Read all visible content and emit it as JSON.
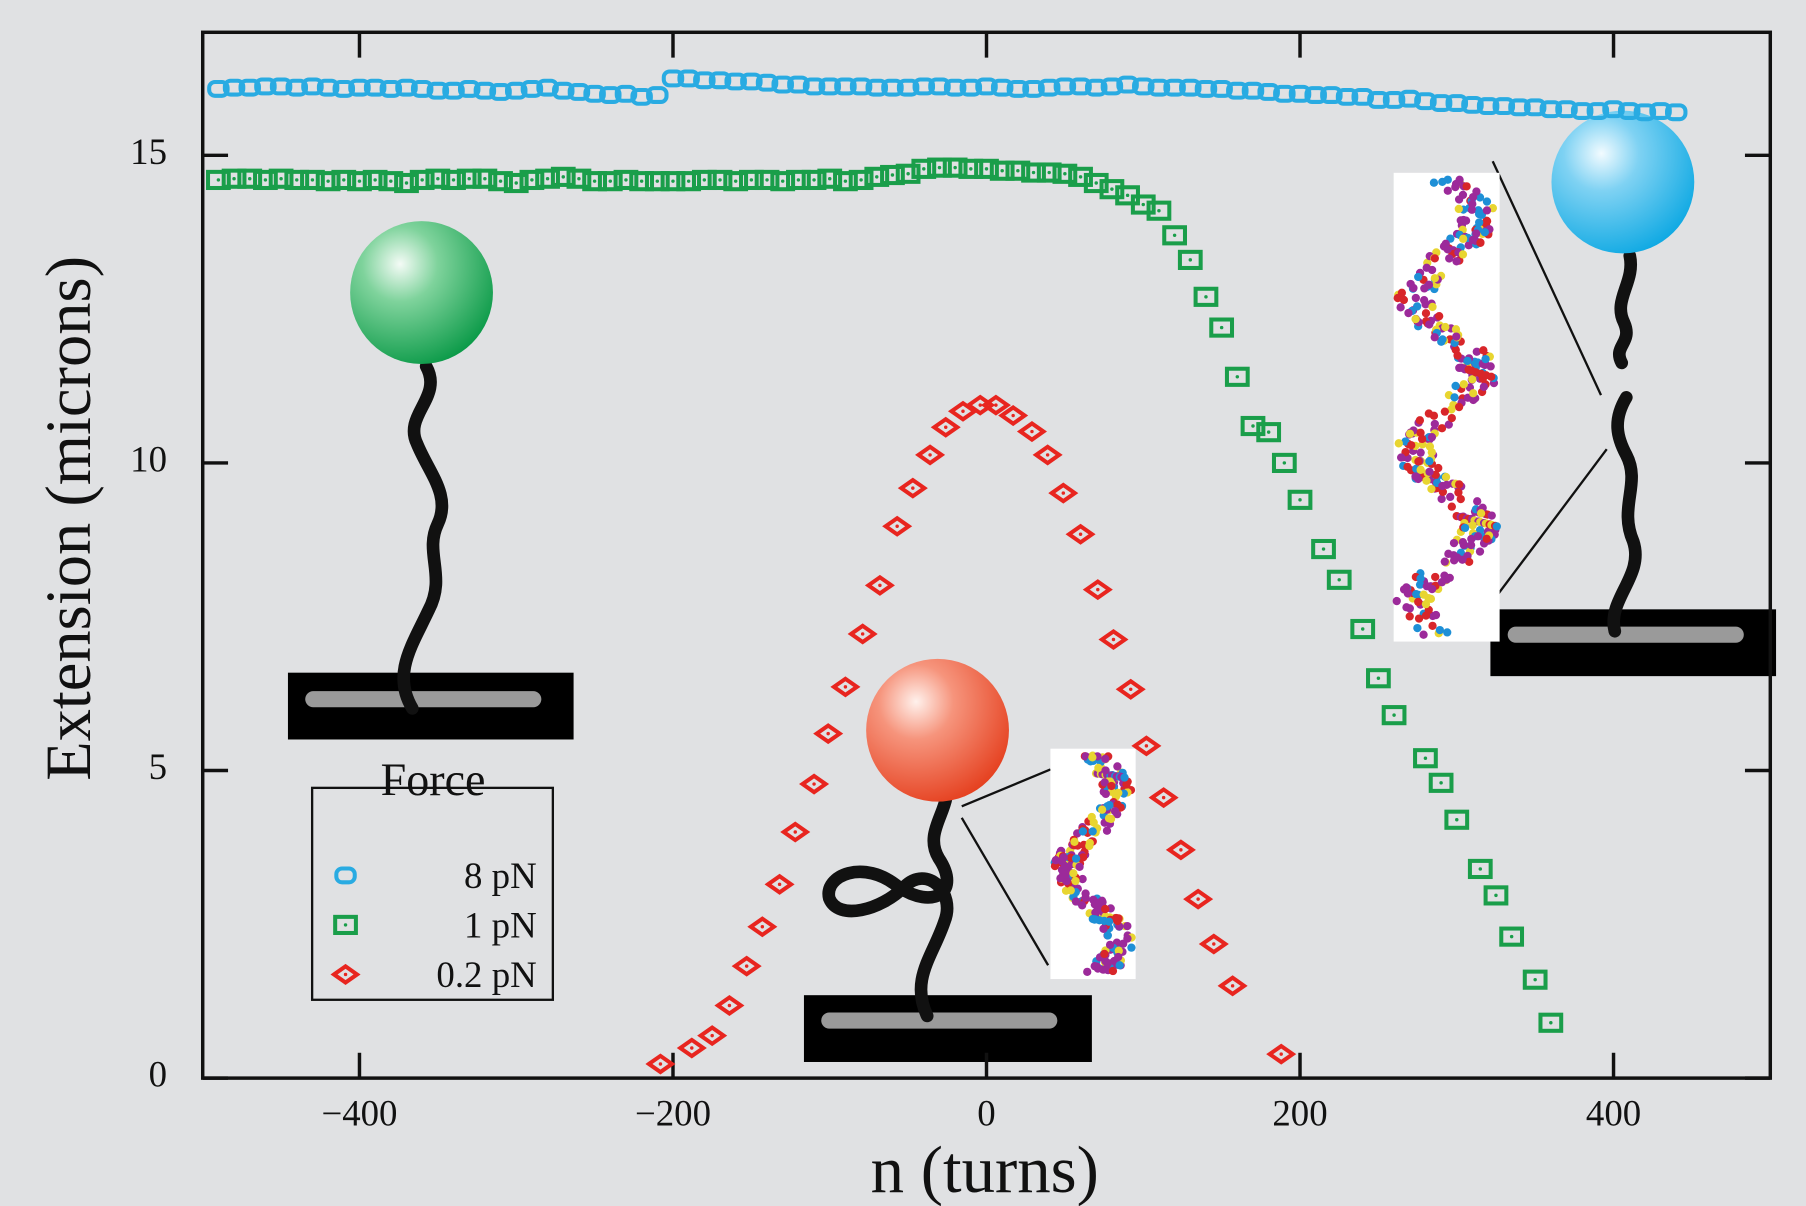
{
  "chart_data": {
    "type": "scatter",
    "x_label": "n (turns)",
    "y_label": "Extension (microns)",
    "xlim": [
      -500,
      500
    ],
    "ylim": [
      0,
      17
    ],
    "xticks": [
      {
        "value": -400,
        "label": "−400"
      },
      {
        "value": -200,
        "label": "−200"
      },
      0,
      200,
      400
    ],
    "yticks": [
      0,
      5,
      10,
      15
    ],
    "legend_title": "Force",
    "series": [
      {
        "name": "8 pN",
        "color": "#29abe2",
        "marker": "octagon",
        "x": [
          -490,
          -480,
          -470,
          -460,
          -450,
          -440,
          -430,
          -420,
          -410,
          -400,
          -390,
          -380,
          -370,
          -360,
          -350,
          -340,
          -330,
          -320,
          -310,
          -300,
          -290,
          -280,
          -270,
          -260,
          -250,
          -240,
          -230,
          -220,
          -210,
          -200,
          -190,
          -180,
          -170,
          -160,
          -150,
          -140,
          -130,
          -120,
          -110,
          -100,
          -90,
          -80,
          -70,
          -60,
          -50,
          -40,
          -30,
          -20,
          -10,
          0,
          10,
          20,
          30,
          40,
          50,
          60,
          70,
          80,
          90,
          100,
          110,
          120,
          130,
          140,
          150,
          160,
          170,
          180,
          190,
          200,
          210,
          220,
          230,
          240,
          250,
          260,
          270,
          280,
          290,
          300,
          310,
          320,
          330,
          340,
          350,
          360,
          370,
          380,
          390,
          400,
          410,
          420,
          430,
          440
        ],
        "values": [
          16.08,
          16.1,
          16.1,
          16.12,
          16.12,
          16.1,
          16.12,
          16.1,
          16.08,
          16.1,
          16.1,
          16.08,
          16.1,
          16.08,
          16.05,
          16.05,
          16.08,
          16.05,
          16.03,
          16.05,
          16.08,
          16.1,
          16.05,
          16.03,
          16.0,
          15.98,
          16.0,
          15.95,
          15.98,
          16.25,
          16.25,
          16.22,
          16.22,
          16.2,
          16.2,
          16.18,
          16.15,
          16.15,
          16.12,
          16.12,
          16.12,
          16.12,
          16.1,
          16.1,
          16.1,
          16.12,
          16.12,
          16.1,
          16.1,
          16.12,
          16.1,
          16.08,
          16.08,
          16.1,
          16.12,
          16.12,
          16.1,
          16.12,
          16.15,
          16.12,
          16.1,
          16.1,
          16.1,
          16.08,
          16.08,
          16.05,
          16.05,
          16.03,
          16.0,
          16.0,
          15.98,
          15.98,
          15.95,
          15.95,
          15.9,
          15.9,
          15.92,
          15.88,
          15.85,
          15.85,
          15.82,
          15.8,
          15.8,
          15.78,
          15.78,
          15.75,
          15.75,
          15.72,
          15.72,
          15.75,
          15.72,
          15.7,
          15.72,
          15.7
        ]
      },
      {
        "name": "1 pN",
        "color": "#1a9e4a",
        "marker": "square",
        "x": [
          -490,
          -480,
          -470,
          -460,
          -450,
          -440,
          -430,
          -420,
          -410,
          -400,
          -390,
          -380,
          -370,
          -360,
          -350,
          -340,
          -330,
          -320,
          -310,
          -300,
          -290,
          -280,
          -270,
          -260,
          -250,
          -240,
          -230,
          -220,
          -210,
          -200,
          -190,
          -180,
          -170,
          -160,
          -150,
          -140,
          -130,
          -120,
          -110,
          -100,
          -90,
          -80,
          -70,
          -60,
          -50,
          -40,
          -30,
          -20,
          -10,
          0,
          10,
          20,
          30,
          40,
          50,
          60,
          70,
          80,
          90,
          100,
          110,
          120,
          130,
          140,
          150,
          160,
          170,
          180,
          190,
          200,
          215,
          225,
          240,
          250,
          260,
          280,
          290,
          300,
          315,
          325,
          335,
          350,
          360
        ],
        "values": [
          14.6,
          14.62,
          14.62,
          14.6,
          14.62,
          14.6,
          14.6,
          14.58,
          14.6,
          14.58,
          14.6,
          14.58,
          14.55,
          14.6,
          14.62,
          14.6,
          14.62,
          14.62,
          14.58,
          14.55,
          14.6,
          14.62,
          14.65,
          14.62,
          14.58,
          14.58,
          14.6,
          14.58,
          14.58,
          14.58,
          14.58,
          14.6,
          14.6,
          14.58,
          14.6,
          14.6,
          14.58,
          14.6,
          14.6,
          14.62,
          14.58,
          14.6,
          14.65,
          14.68,
          14.7,
          14.78,
          14.8,
          14.8,
          14.78,
          14.78,
          14.75,
          14.75,
          14.72,
          14.72,
          14.7,
          14.65,
          14.55,
          14.45,
          14.35,
          14.2,
          14.1,
          13.7,
          13.3,
          12.7,
          12.2,
          11.4,
          10.6,
          10.5,
          10.0,
          9.4,
          8.6,
          8.1,
          7.3,
          6.5,
          5.9,
          5.2,
          4.8,
          4.2,
          3.4,
          2.97,
          2.3,
          1.6,
          0.9
        ]
      },
      {
        "name": "0.2 pN",
        "color": "#e8251f",
        "marker": "diamond",
        "x": [
          -208,
          -188,
          -175,
          -164,
          -153,
          -143,
          -132,
          -122,
          -110,
          -101,
          -90,
          -79,
          -68,
          -57,
          -47,
          -36,
          -26,
          -15,
          -4,
          6,
          17,
          29,
          39,
          49,
          60,
          71,
          81,
          92,
          102,
          113,
          124,
          135,
          145,
          157,
          188
        ],
        "values": [
          0.23,
          0.49,
          0.69,
          1.18,
          1.82,
          2.46,
          3.15,
          4.0,
          4.78,
          5.6,
          6.36,
          7.22,
          8.01,
          8.97,
          9.59,
          10.13,
          10.58,
          10.84,
          10.94,
          10.94,
          10.77,
          10.51,
          10.13,
          9.51,
          8.84,
          7.94,
          7.13,
          6.32,
          5.4,
          4.56,
          3.71,
          2.91,
          2.18,
          1.5,
          0.39
        ]
      }
    ]
  }
}
